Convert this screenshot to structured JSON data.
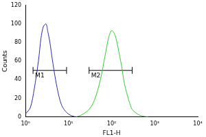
{
  "chart_data": {
    "type": "line",
    "x_label": "FL1-H",
    "y_label": "Counts",
    "log": "x",
    "grid": false,
    "xlim": [
      1,
      10000
    ],
    "xticks": [
      {
        "value": 1,
        "label": "10⁰"
      },
      {
        "value": 10,
        "label": "10¹"
      },
      {
        "value": 100,
        "label": "10²"
      },
      {
        "value": 1000,
        "label": "10³"
      },
      {
        "value": 10000,
        "label": "10⁴"
      }
    ],
    "ylim": [
      0,
      120
    ],
    "yticks": [
      0,
      20,
      40,
      60,
      80,
      100,
      120
    ],
    "series": [
      {
        "color": "#2b2ba8",
        "x": [
          1,
          1.3,
          1.6,
          2,
          2.3,
          2.6,
          3,
          3.3,
          3.7,
          4.2,
          5,
          6,
          7,
          8.5,
          10,
          12,
          15
        ],
        "values": [
          3,
          10,
          30,
          60,
          85,
          97,
          100,
          92,
          80,
          62,
          40,
          22,
          12,
          6,
          3,
          1,
          0
        ]
      },
      {
        "color": "#33cc33",
        "x": [
          15,
          20,
          30,
          40,
          55,
          70,
          85,
          100,
          120,
          140,
          170,
          200,
          250,
          300,
          400,
          500,
          700
        ],
        "values": [
          0,
          2,
          8,
          18,
          40,
          65,
          85,
          93,
          88,
          75,
          55,
          35,
          18,
          8,
          3,
          1,
          0
        ]
      }
    ],
    "markers": [
      {
        "label": "M1",
        "x": [
          1.5,
          9
        ],
        "y": 50
      },
      {
        "label": "M2",
        "x": [
          30,
          300
        ],
        "y": 50
      }
    ]
  }
}
